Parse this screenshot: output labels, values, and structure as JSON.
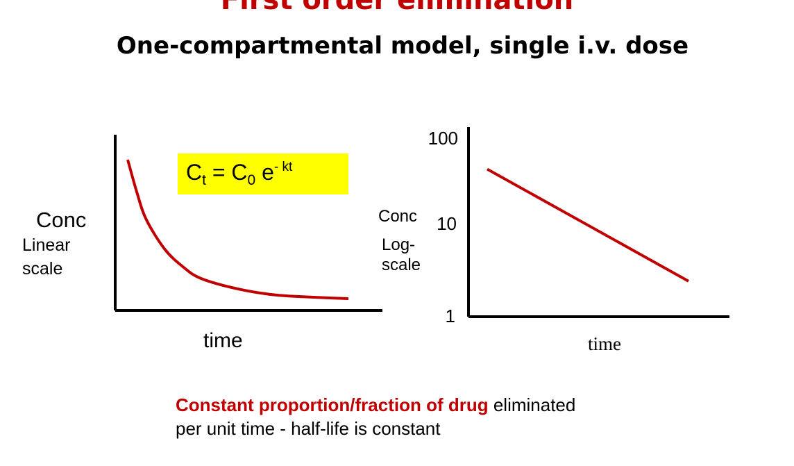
{
  "title": "First order elimination",
  "subtitle": "One-compartmental model, single i.v. dose",
  "formula": {
    "lhs": "C",
    "lhs_sub": "t",
    "eq": " = C",
    "rhs_sub": "0",
    "base": " e",
    "exp": "- kt",
    "highlight": "#ffff00"
  },
  "caption": {
    "highlight": "Constant proportion/fraction of drug",
    "rest_line1": " eliminated",
    "line2": "per unit time  - half-life is constant"
  },
  "colors": {
    "curve": "#c00000",
    "title": "#c00000",
    "axis": "#000000"
  },
  "chart_data": [
    {
      "type": "line",
      "title": "",
      "ylabel": [
        "Conc",
        "Linear",
        "scale"
      ],
      "xlabel": "time",
      "y_scale": "linear",
      "series": [
        {
          "x": [
            0,
            0.25,
            0.5,
            1,
            1.5,
            2,
            3,
            4,
            5,
            6
          ],
          "y": [
            1.0,
            0.78,
            0.6,
            0.4,
            0.28,
            0.2,
            0.13,
            0.09,
            0.075,
            0.065
          ]
        }
      ]
    },
    {
      "type": "line",
      "title": "",
      "ylabel": [
        "Conc",
        "Log-",
        "scale"
      ],
      "xlabel": "time",
      "y_scale": "log",
      "y_ticks": [
        "100",
        "10",
        "1"
      ],
      "ylim": [
        1,
        100
      ],
      "series": [
        {
          "x": [
            0,
            1
          ],
          "y": [
            45,
            2.5
          ]
        }
      ]
    }
  ]
}
